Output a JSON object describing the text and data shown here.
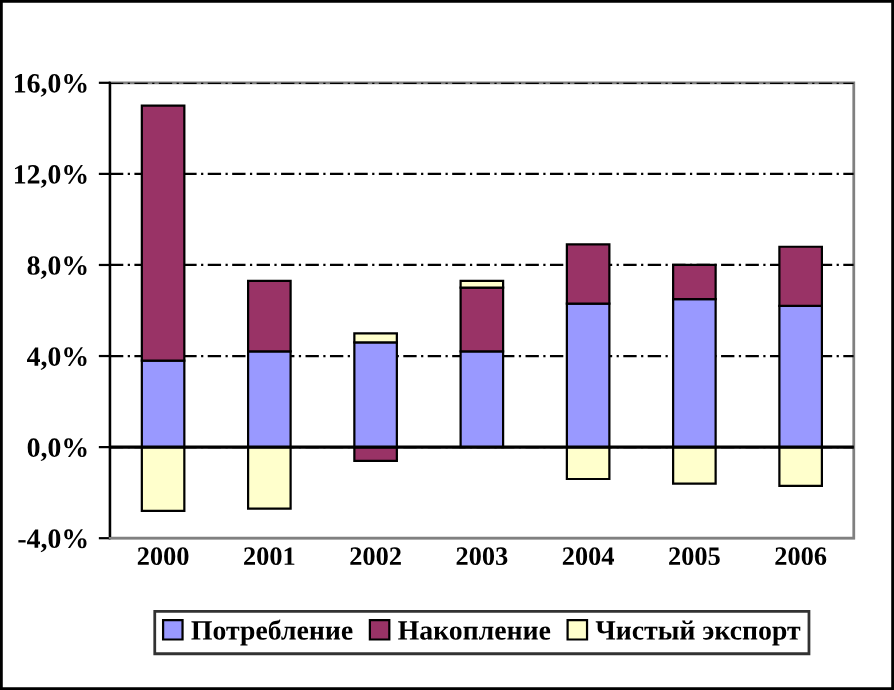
{
  "chart_data": {
    "type": "bar",
    "stacked": true,
    "categories": [
      "2000",
      "2001",
      "2002",
      "2003",
      "2004",
      "2005",
      "2006"
    ],
    "series": [
      {
        "name": "Потребление",
        "color": "#9999ff",
        "values": [
          3.8,
          4.2,
          4.6,
          4.2,
          6.3,
          6.5,
          6.2
        ]
      },
      {
        "name": "Накопление",
        "color": "#993366",
        "values": [
          11.2,
          3.1,
          -0.6,
          2.8,
          2.6,
          1.5,
          2.6
        ]
      },
      {
        "name": "Чистый экспорт",
        "color": "#ffffcc",
        "values": [
          -2.8,
          -2.7,
          0.4,
          0.3,
          -1.4,
          -1.6,
          -1.7
        ]
      }
    ],
    "ylim": [
      -4,
      16
    ],
    "yticks": [
      {
        "value": -4,
        "label": "-4,0%"
      },
      {
        "value": 0,
        "label": "0,0%"
      },
      {
        "value": 4,
        "label": "4,0%"
      },
      {
        "value": 8,
        "label": "8,0%"
      },
      {
        "value": 12,
        "label": "12,0%"
      },
      {
        "value": 16,
        "label": "16,0%"
      }
    ],
    "grid": "y",
    "legend": "bottom"
  }
}
